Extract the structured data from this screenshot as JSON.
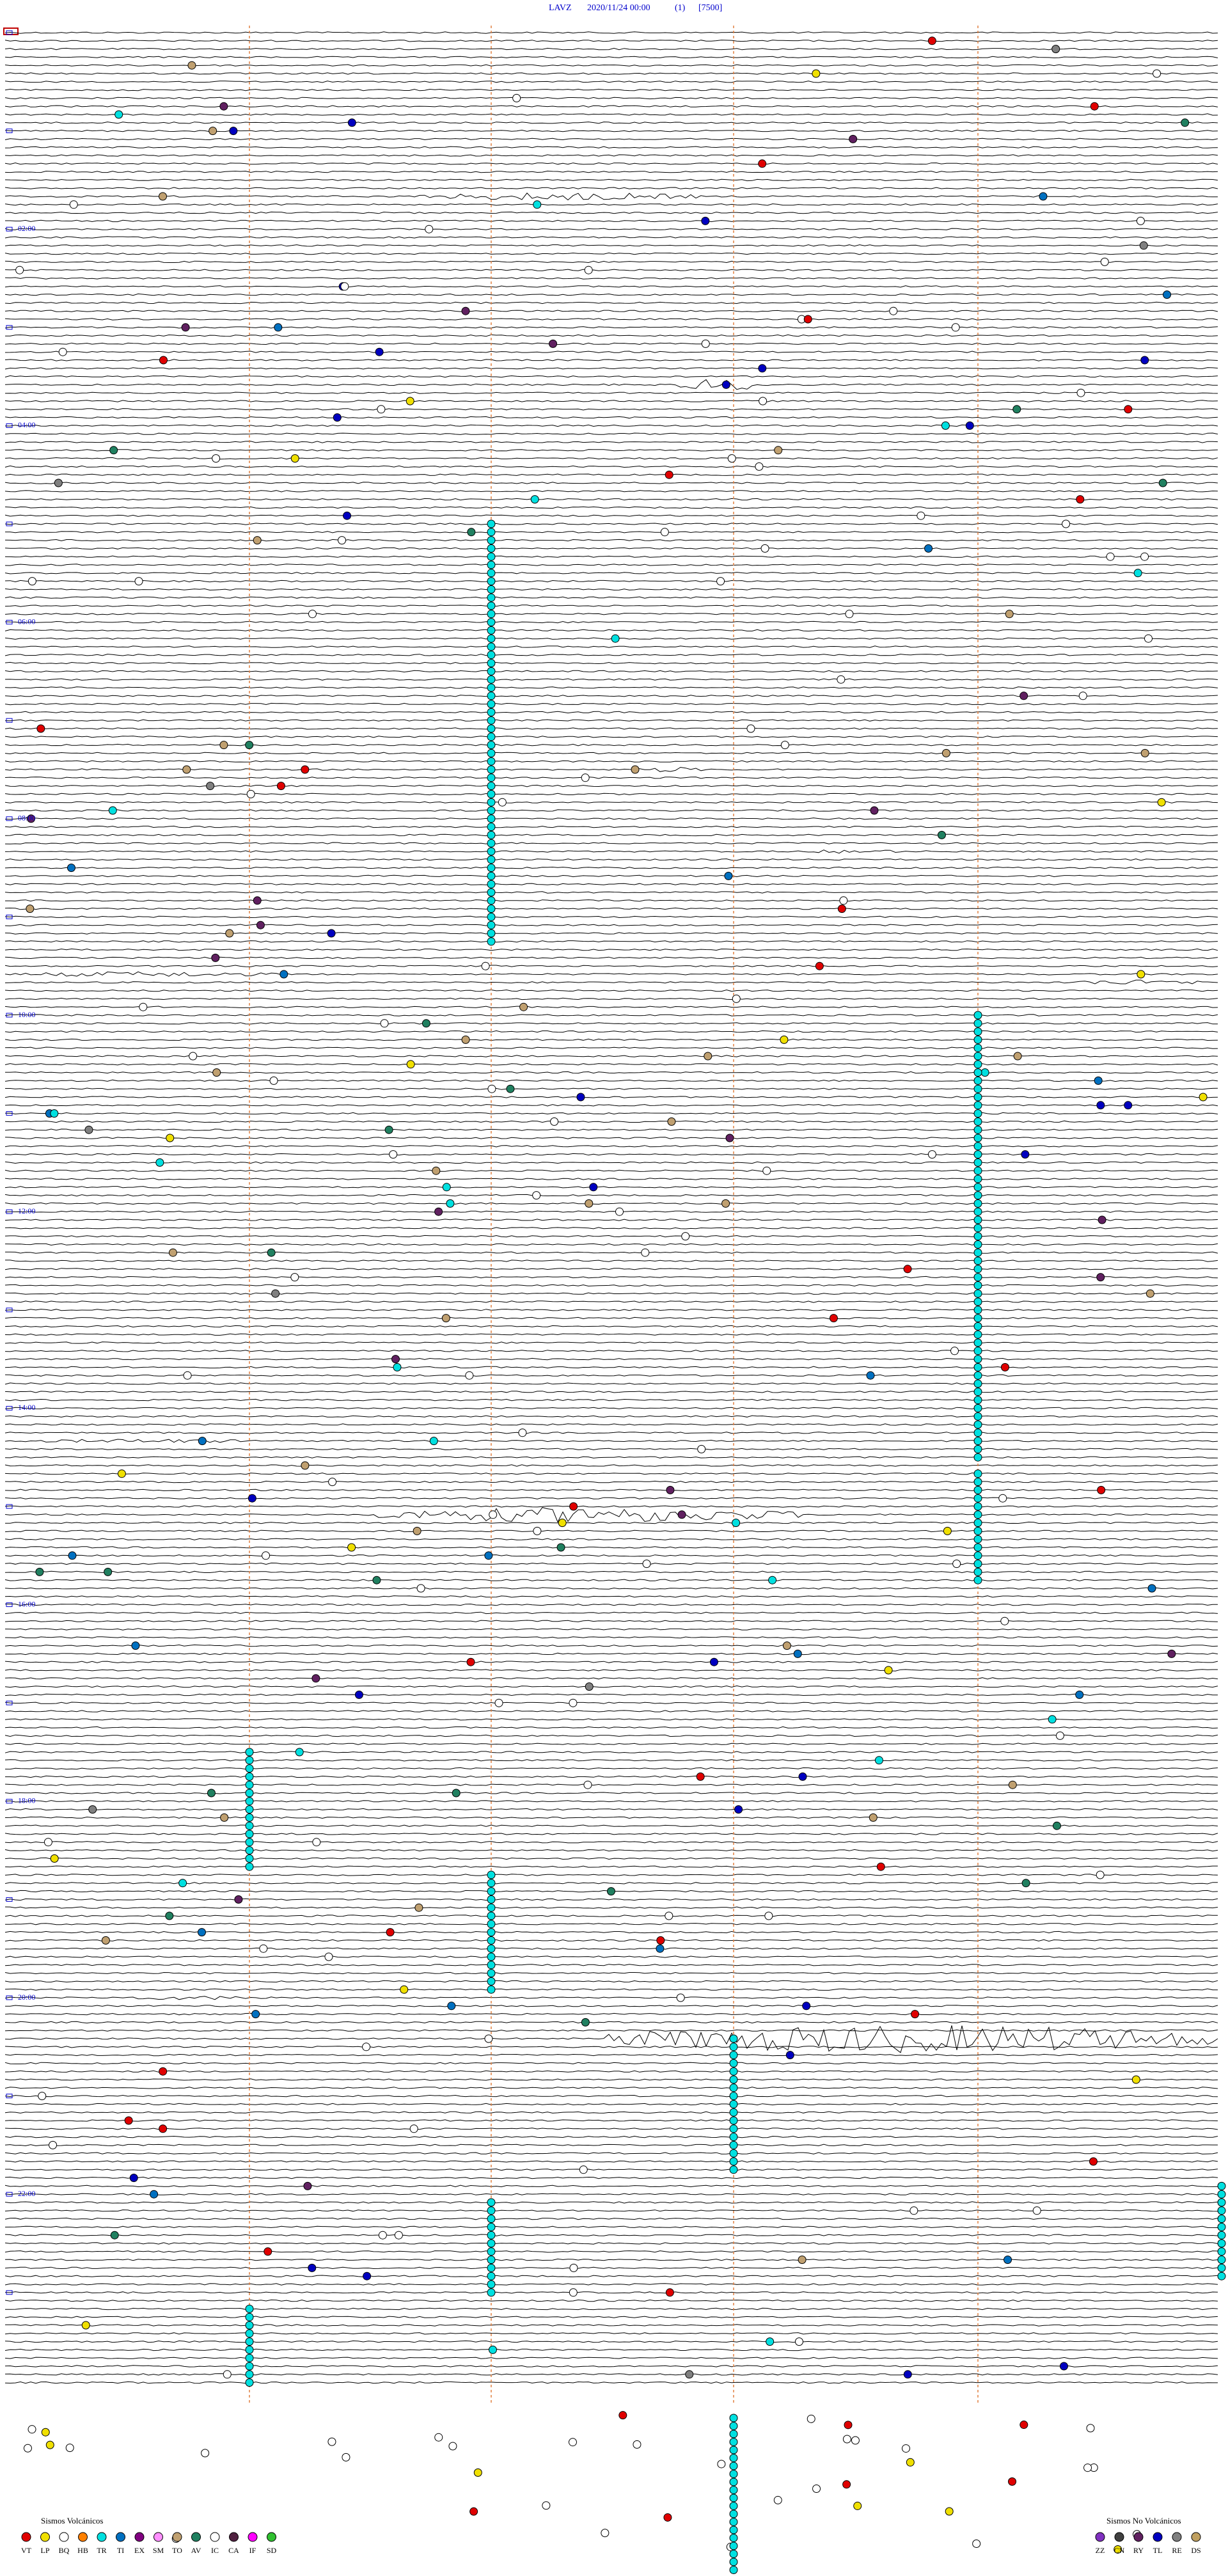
{
  "header": {
    "station": "LAVZ",
    "datetime": "2020/11/24 00:00",
    "channel": "(1)",
    "scale": "[7500]"
  },
  "time_labels": [
    "02:00",
    "04:00",
    "06:00",
    "08:00",
    "10:00",
    "12:00",
    "14:00",
    "16:00",
    "18:00",
    "20:00",
    "22:00"
  ],
  "legend_volcanic": {
    "title": "Sismos Volcánicos",
    "items": [
      {
        "code": "VT",
        "color": "#e00000"
      },
      {
        "code": "LP",
        "color": "#f0e000"
      },
      {
        "code": "BQ",
        "color": "#ffffff"
      },
      {
        "code": "HB",
        "color": "#ff8000"
      },
      {
        "code": "TR",
        "color": "#00e0e0"
      },
      {
        "code": "TI",
        "color": "#0070c0"
      },
      {
        "code": "EX",
        "color": "#800080"
      },
      {
        "code": "SM",
        "color": "#ff90ff"
      },
      {
        "code": "TO",
        "color": "#c0a070"
      },
      {
        "code": "AV",
        "color": "#208060"
      },
      {
        "code": "IC",
        "color": "#ffffff"
      },
      {
        "code": "CA",
        "color": "#502040"
      },
      {
        "code": "IF",
        "color": "#ff00ff"
      },
      {
        "code": "SD",
        "color": "#30c030"
      }
    ]
  },
  "legend_non_volcanic": {
    "title": "Sismos No Volcánicos",
    "items": [
      {
        "code": "ZZ",
        "color": "#8030c0"
      },
      {
        "code": "CN",
        "color": "#404040"
      },
      {
        "code": "RY",
        "color": "#602060"
      },
      {
        "code": "TL",
        "color": "#0000c0"
      },
      {
        "code": "RE",
        "color": "#808080"
      },
      {
        "code": "DS",
        "color": "#c0a060"
      }
    ]
  }
}
